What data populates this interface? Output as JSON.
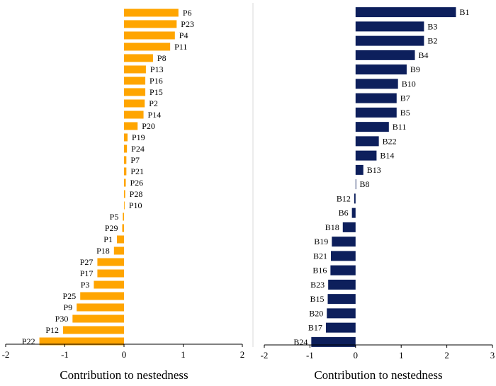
{
  "chart_data": [
    {
      "type": "bar",
      "orientation": "horizontal",
      "color": "#FFA500",
      "xlabel": "Contribution to nestedness",
      "xlim": [
        -2,
        2
      ],
      "xticks": [
        "-2",
        "-1",
        "0",
        "1",
        "2"
      ],
      "grid": false,
      "categories": [
        "P6",
        "P23",
        "P4",
        "P11",
        "P8",
        "P13",
        "P16",
        "P15",
        "P2",
        "P14",
        "P20",
        "P19",
        "P24",
        "P7",
        "P21",
        "P26",
        "P28",
        "P10",
        "P5",
        "P29",
        "P1",
        "P18",
        "P27",
        "P17",
        "P3",
        "P25",
        "P9",
        "P30",
        "P12",
        "P22"
      ],
      "values": [
        0.92,
        0.89,
        0.86,
        0.78,
        0.49,
        0.37,
        0.36,
        0.36,
        0.35,
        0.33,
        0.23,
        0.06,
        0.05,
        0.04,
        0.04,
        0.03,
        0.02,
        0.01,
        -0.02,
        -0.03,
        -0.12,
        -0.17,
        -0.45,
        -0.45,
        -0.51,
        -0.74,
        -0.8,
        -0.87,
        -1.03,
        -1.43
      ]
    },
    {
      "type": "bar",
      "orientation": "horizontal",
      "color": "#0D1F5C",
      "xlabel": "Contribution to nestedness",
      "xlim": [
        -2,
        3
      ],
      "xticks": [
        "-2",
        "-1",
        "0",
        "1",
        "2",
        "3"
      ],
      "grid": false,
      "categories": [
        "B1",
        "B3",
        "B2",
        "B4",
        "B9",
        "B10",
        "B7",
        "B5",
        "B11",
        "B22",
        "B14",
        "B13",
        "B8",
        "B12",
        "B6",
        "B18",
        "B19",
        "B21",
        "B16",
        "B23",
        "B15",
        "B20",
        "B17",
        "B24"
      ],
      "values": [
        2.2,
        1.5,
        1.5,
        1.3,
        1.12,
        0.93,
        0.9,
        0.9,
        0.73,
        0.51,
        0.46,
        0.17,
        0.01,
        -0.03,
        -0.08,
        -0.28,
        -0.52,
        -0.54,
        -0.55,
        -0.6,
        -0.61,
        -0.63,
        -0.65,
        -0.97
      ]
    }
  ]
}
